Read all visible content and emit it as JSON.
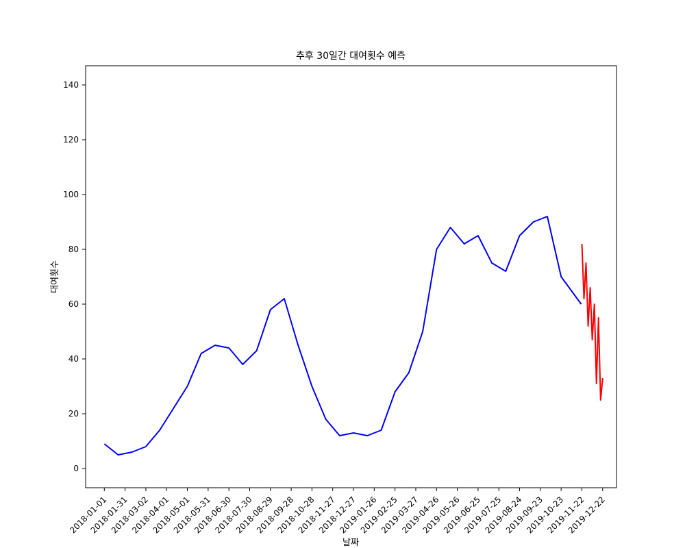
{
  "chart_data": {
    "type": "line",
    "title": "추후 30일간 대여횟수 예측",
    "xlabel": "날짜",
    "ylabel": "대여횟수",
    "x_ticks": [
      "2018-01-01",
      "2018-01-31",
      "2018-03-02",
      "2018-04-01",
      "2018-05-01",
      "2018-05-31",
      "2018-06-30",
      "2018-07-30",
      "2018-08-29",
      "2018-09-28",
      "2018-10-28",
      "2018-11-27",
      "2018-12-27",
      "2019-01-26",
      "2019-02-25",
      "2019-03-27",
      "2019-04-26",
      "2019-05-26",
      "2019-06-25",
      "2019-07-25",
      "2019-08-24",
      "2019-09-23",
      "2019-10-23",
      "2019-11-22",
      "2019-12-22"
    ],
    "y_ticks": [
      0,
      20,
      40,
      60,
      80,
      100,
      120,
      140
    ],
    "xlim": [
      "2017-12-05",
      "2020-01-11"
    ],
    "ylim": [
      -7,
      147
    ],
    "grid": false,
    "series": [
      {
        "color": "#0000ff",
        "x": [
          "2018-01-01",
          "2018-01-21",
          "2018-02-10",
          "2018-03-02",
          "2018-03-22",
          "2018-04-11",
          "2018-05-01",
          "2018-05-21",
          "2018-06-10",
          "2018-06-30",
          "2018-07-20",
          "2018-08-09",
          "2018-08-29",
          "2018-09-18",
          "2018-10-08",
          "2018-10-28",
          "2018-11-17",
          "2018-12-07",
          "2018-12-27",
          "2019-01-16",
          "2019-02-05",
          "2019-02-25",
          "2019-03-17",
          "2019-04-06",
          "2019-04-26",
          "2019-05-16",
          "2019-06-05",
          "2019-06-25",
          "2019-07-15",
          "2019-08-04",
          "2019-08-24",
          "2019-09-13",
          "2019-10-03",
          "2019-10-23",
          "2019-11-21"
        ],
        "y": [
          9,
          5,
          6,
          8,
          14,
          22,
          30,
          42,
          45,
          44,
          38,
          43,
          58,
          62,
          45,
          30,
          18,
          12,
          13,
          12,
          14,
          28,
          35,
          50,
          80,
          88,
          82,
          85,
          75,
          72,
          85,
          90,
          92,
          70,
          60
        ]
      },
      {
        "color": "#ff0000",
        "x": [
          "2019-11-22",
          "2019-11-25",
          "2019-11-28",
          "2019-12-01",
          "2019-12-04",
          "2019-12-07",
          "2019-12-10",
          "2019-12-13",
          "2019-12-16",
          "2019-12-19",
          "2019-12-22"
        ],
        "y": [
          82,
          62,
          75,
          52,
          66,
          47,
          60,
          31,
          55,
          25,
          33
        ]
      }
    ]
  }
}
